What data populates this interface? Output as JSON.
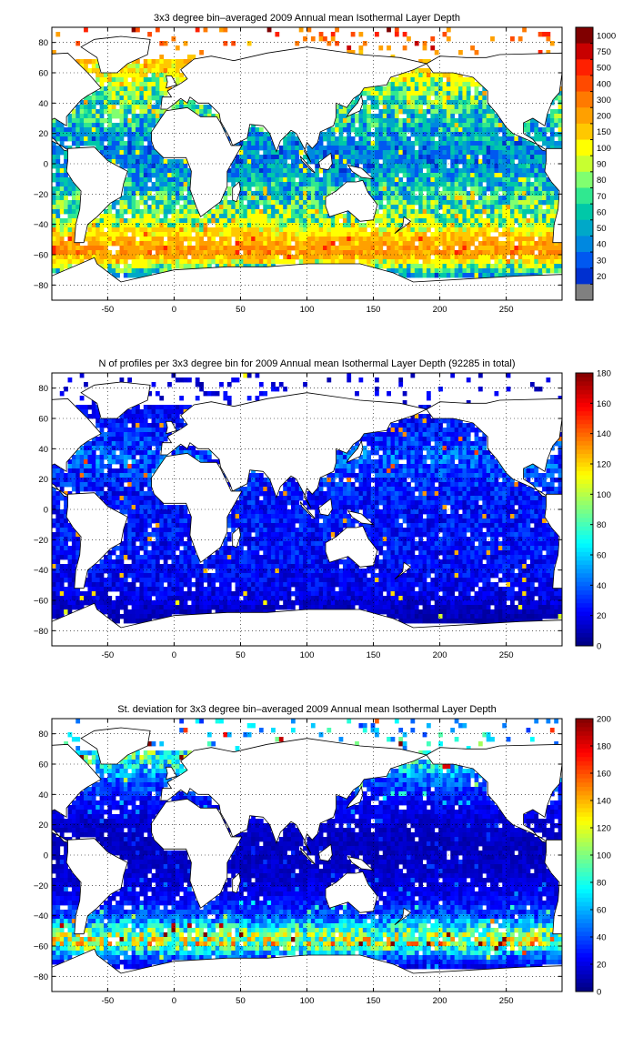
{
  "chart_data": [
    {
      "type": "heatmap",
      "title": "3x3 degree bin–averaged 2009 Annual mean Isothermal Layer Depth",
      "xlabel": "",
      "ylabel": "",
      "xlim": [
        -92,
        292
      ],
      "ylim": [
        -90,
        90
      ],
      "x_ticks": [
        "-50",
        "0",
        "50",
        "100",
        "150",
        "200",
        "250"
      ],
      "y_ticks": [
        "80",
        "60",
        "40",
        "20",
        "0",
        "−20",
        "−40",
        "−60",
        "−80"
      ],
      "grid": true,
      "map_projection": "lon-lat",
      "bin_size_deg": 3,
      "colorbar": {
        "scale": "discrete",
        "ticks": [
          "1000",
          "750",
          "500",
          "400",
          "300",
          "200",
          "150",
          "100",
          "90",
          "80",
          "70",
          "60",
          "50",
          "40",
          "30",
          "20"
        ],
        "colors": [
          "#800000",
          "#c80000",
          "#ff2000",
          "#ff4a00",
          "#ff7a00",
          "#ffa000",
          "#ffc800",
          "#ffff00",
          "#c8ff30",
          "#80ff70",
          "#30e890",
          "#00c8a8",
          "#00a8c8",
          "#0088e0",
          "#0058f0",
          "#0030d0",
          "#808080"
        ]
      },
      "zonal_profile": [
        {
          "lat": 85,
          "value": 400
        },
        {
          "lat": 65,
          "value": 150
        },
        {
          "lat": 50,
          "value": 90
        },
        {
          "lat": 35,
          "value": 70
        },
        {
          "lat": 20,
          "value": 55
        },
        {
          "lat": 5,
          "value": 45
        },
        {
          "lat": -10,
          "value": 55
        },
        {
          "lat": -25,
          "value": 70
        },
        {
          "lat": -40,
          "value": 100
        },
        {
          "lat": -50,
          "value": 200
        },
        {
          "lat": -58,
          "value": 300
        },
        {
          "lat": -66,
          "value": 100
        },
        {
          "lat": -74,
          "value": 50
        }
      ],
      "missing_value_color": "#808080"
    },
    {
      "type": "heatmap",
      "title": "N of profiles per 3x3 degree bin for 2009 Annual mean Isothermal Layer Depth  (92285 in total)",
      "xlabel": "",
      "ylabel": "",
      "xlim": [
        -92,
        292
      ],
      "ylim": [
        -90,
        90
      ],
      "x_ticks": [
        "-50",
        "0",
        "50",
        "100",
        "150",
        "200",
        "250"
      ],
      "y_ticks": [
        "80",
        "60",
        "40",
        "20",
        "0",
        "−20",
        "−40",
        "−60",
        "−80"
      ],
      "grid": true,
      "map_projection": "lon-lat",
      "bin_size_deg": 3,
      "total_profiles": 92285,
      "colorbar": {
        "scale": "continuous",
        "range": [
          0,
          180
        ],
        "ticks": [
          "180",
          "160",
          "140",
          "120",
          "100",
          "80",
          "60",
          "40",
          "20",
          "0"
        ]
      },
      "zonal_profile": [
        {
          "lat": 85,
          "value": 15
        },
        {
          "lat": 65,
          "value": 22
        },
        {
          "lat": 50,
          "value": 28
        },
        {
          "lat": 35,
          "value": 38
        },
        {
          "lat": 20,
          "value": 30
        },
        {
          "lat": 5,
          "value": 25
        },
        {
          "lat": -10,
          "value": 25
        },
        {
          "lat": -25,
          "value": 25
        },
        {
          "lat": -40,
          "value": 22
        },
        {
          "lat": -50,
          "value": 20
        },
        {
          "lat": -58,
          "value": 18
        },
        {
          "lat": -66,
          "value": 12
        },
        {
          "lat": -74,
          "value": 8
        }
      ]
    },
    {
      "type": "heatmap",
      "title": "St. deviation for 3x3 degree bin–averaged 2009 Annual mean Isothermal Layer Depth",
      "xlabel": "",
      "ylabel": "",
      "xlim": [
        -92,
        292
      ],
      "ylim": [
        -90,
        90
      ],
      "x_ticks": [
        "-50",
        "0",
        "50",
        "100",
        "150",
        "200",
        "250"
      ],
      "y_ticks": [
        "80",
        "60",
        "40",
        "20",
        "0",
        "−20",
        "−40",
        "−60",
        "−80"
      ],
      "grid": true,
      "map_projection": "lon-lat",
      "bin_size_deg": 3,
      "colorbar": {
        "scale": "continuous",
        "range": [
          0,
          200
        ],
        "ticks": [
          "200",
          "180",
          "160",
          "140",
          "120",
          "100",
          "80",
          "60",
          "40",
          "20",
          "0"
        ]
      },
      "zonal_profile": [
        {
          "lat": 85,
          "value": 60
        },
        {
          "lat": 65,
          "value": 90
        },
        {
          "lat": 50,
          "value": 45
        },
        {
          "lat": 35,
          "value": 25
        },
        {
          "lat": 20,
          "value": 15
        },
        {
          "lat": 5,
          "value": 12
        },
        {
          "lat": -10,
          "value": 15
        },
        {
          "lat": -25,
          "value": 20
        },
        {
          "lat": -40,
          "value": 40
        },
        {
          "lat": -50,
          "value": 90
        },
        {
          "lat": -58,
          "value": 120
        },
        {
          "lat": -66,
          "value": 50
        },
        {
          "lat": -74,
          "value": 20
        }
      ]
    }
  ]
}
